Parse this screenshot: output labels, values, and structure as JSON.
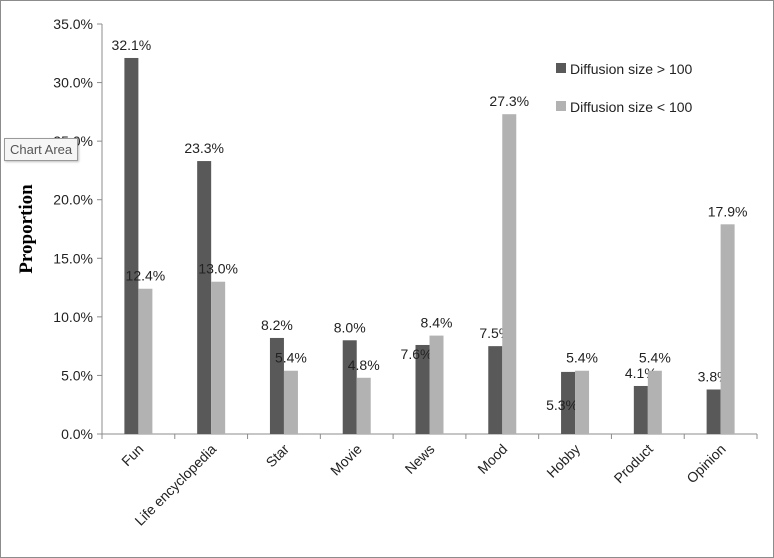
{
  "tooltip": "Chart Area",
  "colors": {
    "series1": "#595959",
    "series2": "#b2b2b2",
    "axis": "#8c8c8c"
  },
  "chart_data": {
    "type": "bar",
    "ylabel": "Proportion",
    "ylim": [
      0,
      35
    ],
    "ytick_step": 5,
    "ytick_labels": [
      "0.0%",
      "5.0%",
      "10.0%",
      "15.0%",
      "20.0%",
      "25.0%",
      "30.0%",
      "35.0%"
    ],
    "legend_position": "top-right",
    "grid": false,
    "categories": [
      "Fun",
      "Life encyclopedia",
      "Star",
      "Movie",
      "News",
      "Mood",
      "Hobby",
      "Product",
      "Opinion"
    ],
    "series": [
      {
        "name": "Diffusion size > 100",
        "values": [
          32.1,
          23.3,
          8.2,
          8.0,
          7.6,
          7.5,
          5.3,
          4.1,
          3.8
        ],
        "labels": [
          "32.1%",
          "23.3%",
          "8.2%",
          "8.0%",
          "7.6%",
          "7.5%",
          "5.3%",
          "4.1%",
          "3.8%"
        ]
      },
      {
        "name": "Diffusion size < 100",
        "values": [
          12.4,
          13.0,
          5.4,
          4.8,
          8.4,
          27.3,
          5.4,
          5.4,
          17.9
        ],
        "labels": [
          "12.4%",
          "13.0%",
          "5.4%",
          "4.8%",
          "8.4%",
          "27.3%",
          "5.4%",
          "5.4%",
          "17.9%"
        ]
      }
    ]
  }
}
